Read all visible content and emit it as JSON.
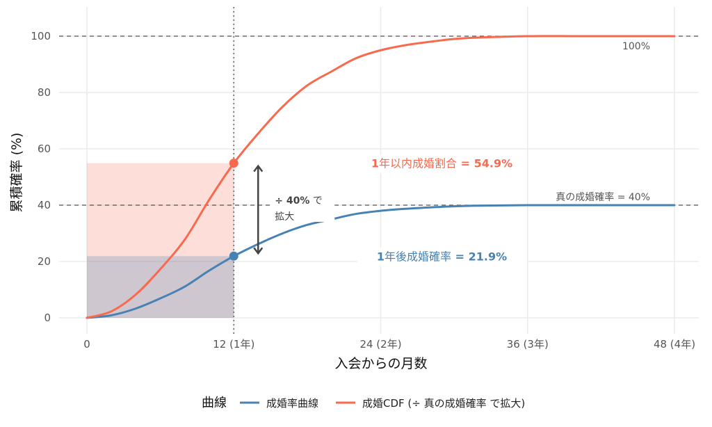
{
  "chart_data": {
    "type": "line",
    "xlabel": "入会からの月数",
    "ylabel": "累積確率 (%)",
    "xlim": [
      0,
      48
    ],
    "ylim": [
      0,
      100
    ],
    "x_ticks": [
      {
        "value": 0,
        "label": "0"
      },
      {
        "value": 12,
        "label": "12 (1年)"
      },
      {
        "value": 24,
        "label": "24 (2年)"
      },
      {
        "value": 36,
        "label": "36 (3年)"
      },
      {
        "value": 48,
        "label": "48 (4年)"
      }
    ],
    "y_ticks": [
      {
        "value": 0,
        "label": "0"
      },
      {
        "value": 20,
        "label": "20"
      },
      {
        "value": 40,
        "label": "40"
      },
      {
        "value": 60,
        "label": "60"
      },
      {
        "value": 80,
        "label": "80"
      },
      {
        "value": 100,
        "label": "100"
      }
    ],
    "x": [
      0,
      2,
      4,
      6,
      8,
      10,
      12,
      14,
      16,
      18,
      20,
      22,
      24,
      26,
      28,
      30,
      32,
      36,
      40,
      44,
      48
    ],
    "series": [
      {
        "name": "成婚率曲線",
        "color": "#4682b4",
        "values": [
          0,
          0.9,
          3.3,
          6.9,
          11.1,
          16.8,
          21.9,
          26.2,
          30.0,
          33.0,
          35.0,
          36.9,
          38.0,
          38.7,
          39.2,
          39.6,
          39.8,
          40.0,
          40.0,
          40.0,
          40.0
        ]
      },
      {
        "name": "成婚CDF (÷ 真の成婚確率 で拡大)",
        "color": "#f8694e",
        "values": [
          0,
          2.3,
          8.3,
          17.3,
          27.8,
          42.0,
          54.9,
          65.5,
          75.0,
          82.5,
          87.5,
          92.2,
          95.0,
          96.8,
          98.0,
          99.0,
          99.5,
          100,
          100,
          100,
          100
        ]
      }
    ],
    "highlight_month": 12,
    "highlight_points": [
      {
        "series": 0,
        "x": 12,
        "y": 21.9
      },
      {
        "series": 1,
        "x": 12,
        "y": 54.9
      }
    ],
    "reference_lines": [
      {
        "y": 100,
        "label": "100%"
      },
      {
        "y": 40,
        "label": "真の成婚確率 = 40%"
      }
    ],
    "annotations": {
      "cdf_value": {
        "prefix": "1",
        "text": "年以内成婚割合",
        "value": " = 54.9%",
        "color": "#f8694e",
        "x": 29,
        "y": 54.9
      },
      "rate_value": {
        "prefix": "1",
        "text": "年後成婚確率",
        "value": " = 21.9%",
        "color": "#4682b4",
        "x": 29,
        "y": 21.9
      },
      "scale_note": {
        "line1_value": "÷ 40%",
        "line1_suffix": " で",
        "line2": "拡大"
      }
    },
    "legend": {
      "title": "曲線",
      "position": "bottom"
    },
    "grid": true
  }
}
